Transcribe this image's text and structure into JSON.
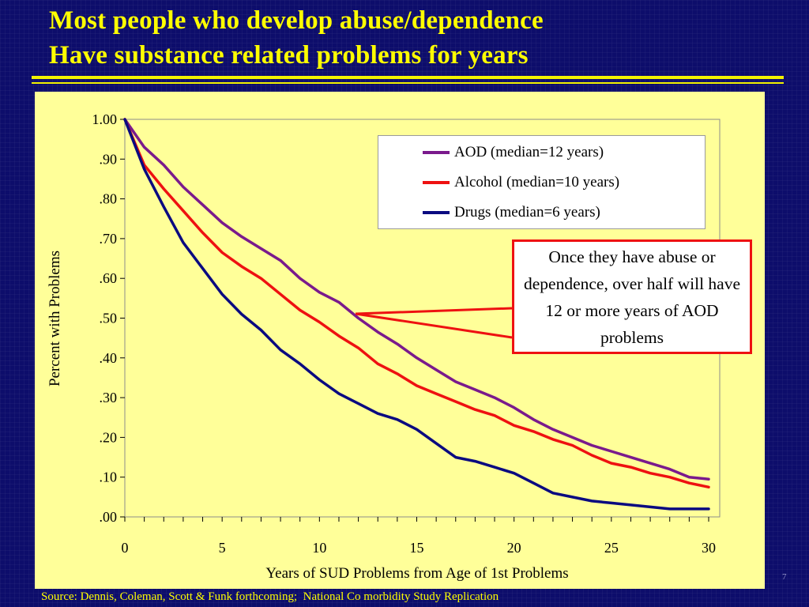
{
  "title": {
    "line1": "Most people who develop abuse/dependence",
    "line2": "Have substance related problems for years"
  },
  "callout": {
    "text": "Once they have abuse or dependence, over half will have 12 or more years of AOD problems"
  },
  "footer": {
    "source": "Source: Dennis, Coleman, Scott & Funk forthcoming;  National Co morbidity Study Replication",
    "page_number": "7"
  },
  "colors": {
    "background": "#0d0d6b",
    "title": "#ffff00",
    "plot_panel": "#ffff99",
    "callout_border": "#ee1111"
  },
  "chart_data": {
    "type": "line",
    "title": "",
    "xlabel": "Years of SUD Problems from Age of 1st Problems",
    "ylabel": "Percent with Problems",
    "xlim": [
      0,
      30
    ],
    "ylim": [
      0,
      1
    ],
    "x_ticks": [
      "0",
      "5",
      "10",
      "15",
      "20",
      "25",
      "30"
    ],
    "y_ticks": [
      ".00",
      ".10",
      ".20",
      ".30",
      ".40",
      ".50",
      ".60",
      ".70",
      ".80",
      ".90",
      "1.00"
    ],
    "grid": false,
    "legend": "top-right",
    "x": [
      0,
      1,
      2,
      3,
      4,
      5,
      6,
      7,
      8,
      9,
      10,
      11,
      12,
      13,
      14,
      15,
      16,
      17,
      18,
      19,
      20,
      21,
      22,
      23,
      24,
      25,
      26,
      27,
      28,
      29,
      30
    ],
    "series": [
      {
        "name": "AOD (median=12 years)",
        "color": "#7a1a8c",
        "values": [
          1.0,
          0.93,
          0.885,
          0.83,
          0.785,
          0.74,
          0.705,
          0.675,
          0.645,
          0.6,
          0.565,
          0.54,
          0.5,
          0.465,
          0.435,
          0.4,
          0.37,
          0.34,
          0.32,
          0.3,
          0.275,
          0.245,
          0.22,
          0.2,
          0.18,
          0.165,
          0.15,
          0.135,
          0.12,
          0.1,
          0.095
        ]
      },
      {
        "name": "Alcohol (median=10 years)",
        "color": "#ee1111",
        "values": [
          1.0,
          0.885,
          0.825,
          0.77,
          0.715,
          0.665,
          0.63,
          0.6,
          0.56,
          0.52,
          0.49,
          0.455,
          0.425,
          0.385,
          0.36,
          0.33,
          0.31,
          0.29,
          0.27,
          0.255,
          0.23,
          0.215,
          0.195,
          0.18,
          0.155,
          0.135,
          0.125,
          0.11,
          0.1,
          0.085,
          0.075
        ]
      },
      {
        "name": "Drugs (median=6 years)",
        "color": "#0a0a80",
        "values": [
          1.0,
          0.875,
          0.78,
          0.69,
          0.625,
          0.56,
          0.51,
          0.47,
          0.42,
          0.385,
          0.345,
          0.31,
          0.285,
          0.26,
          0.245,
          0.22,
          0.185,
          0.15,
          0.14,
          0.125,
          0.11,
          0.085,
          0.06,
          0.05,
          0.04,
          0.035,
          0.03,
          0.025,
          0.02,
          0.02,
          0.02
        ]
      }
    ]
  }
}
